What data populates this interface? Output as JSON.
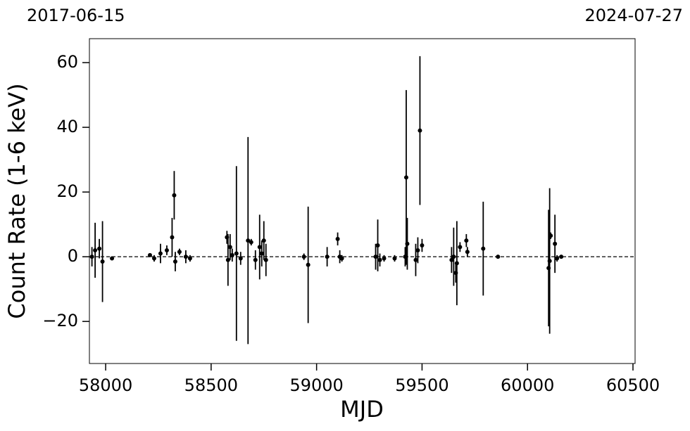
{
  "chart_data": {
    "type": "scatter",
    "annotations": [
      "2017-06-15",
      "2024-07-27"
    ],
    "xlabel": "MJD",
    "ylabel": "Count Rate (1-6 keV)",
    "color": "#000000",
    "hline": 0,
    "xlim": [
      57923,
      60510
    ],
    "ylim": [
      -33,
      67.4
    ],
    "xticks": [
      58000,
      58500,
      59000,
      59500,
      60000,
      60500
    ],
    "yticks": [
      {
        "value": -20,
        "label": "−20"
      },
      0,
      20,
      40,
      60
    ],
    "x": [
      57935,
      57950,
      57970,
      57985,
      58030,
      58210,
      58230,
      58260,
      58290,
      58315,
      58325,
      58330,
      58350,
      58380,
      58400,
      58575,
      58580,
      58590,
      58600,
      58620,
      58640,
      58675,
      58690,
      58710,
      58730,
      58740,
      58750,
      58760,
      58940,
      58960,
      59050,
      59100,
      59110,
      59120,
      59280,
      59290,
      59300,
      59320,
      59370,
      59420,
      59425,
      59430,
      59470,
      59480,
      59490,
      59500,
      59640,
      59650,
      59660,
      59665,
      59680,
      59710,
      59715,
      59790,
      59860,
      60100,
      60105,
      60110,
      60130,
      60140,
      60160
    ],
    "values": [
      0,
      2,
      2.5,
      -1.5,
      -0.5,
      0.5,
      -0.5,
      1,
      2,
      6,
      19,
      -1.5,
      1.5,
      0,
      -0.5,
      6,
      -1,
      3,
      0.5,
      1,
      -0.5,
      5,
      4.5,
      -1,
      3,
      1,
      5,
      -1,
      0,
      -2.5,
      0,
      5.5,
      0,
      -0.5,
      0,
      3.5,
      -1,
      -0.5,
      -0.5,
      0,
      24.5,
      4,
      -1,
      2,
      39,
      3.5,
      -1,
      0,
      -5,
      -2,
      3,
      5,
      1.5,
      2.5,
      0,
      -3.5,
      -1.3,
      6.5,
      4,
      -0.5,
      0
    ],
    "errors": [
      3,
      8.5,
      3,
      12.5,
      0.5,
      0.5,
      1,
      3,
      1.5,
      6,
      7.5,
      3,
      1,
      2,
      1,
      2,
      8,
      4,
      2,
      27,
      2,
      32,
      1,
      3,
      10,
      4,
      6,
      5,
      1,
      18,
      3,
      2,
      2,
      1,
      4,
      8,
      2,
      1,
      1,
      3,
      27,
      8,
      5,
      4,
      23,
      2,
      4,
      9,
      3,
      13,
      1.5,
      2,
      1.5,
      14.5,
      0.5,
      18,
      22.5,
      1,
      9,
      1,
      0.5
    ]
  }
}
